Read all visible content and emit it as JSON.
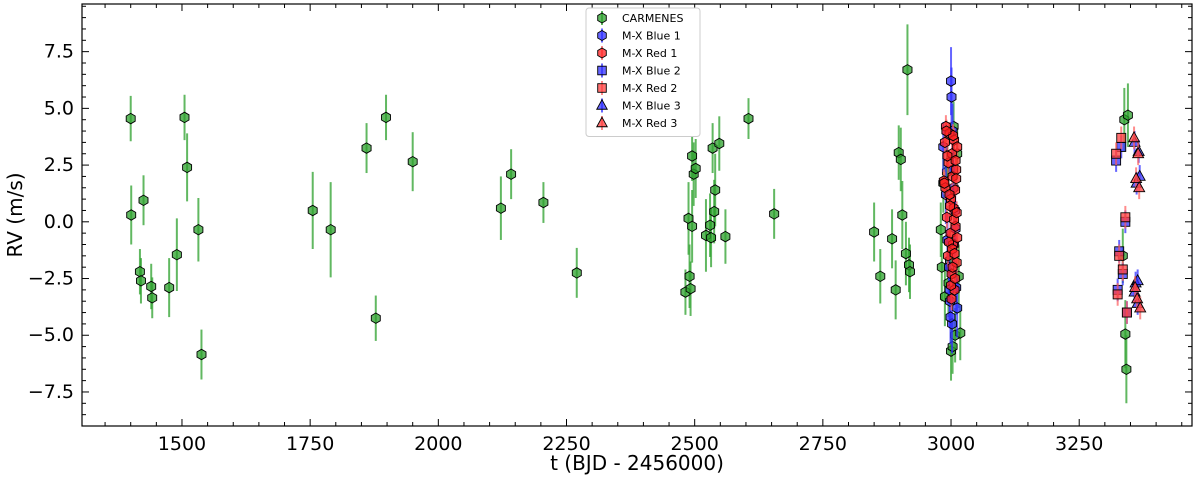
{
  "chart_data": {
    "type": "scatter",
    "xlabel": "t (BJD - 2456000)",
    "ylabel": "RV (m/s)",
    "xlim": [
      1305,
      3470
    ],
    "ylim": [
      -9.0,
      9.6
    ],
    "xticks": [
      1500,
      1750,
      2000,
      2250,
      2500,
      2750,
      3000,
      3250
    ],
    "yticks": [
      -7.5,
      -5.0,
      -2.5,
      0.0,
      2.5,
      5.0,
      7.5
    ],
    "xtick_labels": [
      "1500",
      "1750",
      "2000",
      "2250",
      "2500",
      "2750",
      "3000",
      "3250"
    ],
    "ytick_labels": [
      "−7.5",
      "−5.0",
      "−2.5",
      "0.0",
      "2.5",
      "5.0",
      "7.5"
    ],
    "grid": false,
    "legend_position": "top-center",
    "series": [
      {
        "name": "CARMENES",
        "marker": "hexagon",
        "color": "#2ca02c",
        "error_color": "#2ca02c",
        "points": [
          [
            1400,
            4.55,
            1.0
          ],
          [
            1401,
            0.3,
            1.3
          ],
          [
            1418,
            -2.2,
            1.0
          ],
          [
            1420,
            -2.6,
            1.0
          ],
          [
            1425,
            0.95,
            1.1
          ],
          [
            1440,
            -2.85,
            1.0
          ],
          [
            1442,
            -3.35,
            0.9
          ],
          [
            1475,
            -2.9,
            1.3
          ],
          [
            1490,
            -1.45,
            1.6
          ],
          [
            1505,
            4.6,
            1.0
          ],
          [
            1510,
            2.4,
            1.5
          ],
          [
            1532,
            -0.35,
            1.4
          ],
          [
            1538,
            -5.85,
            1.1
          ],
          [
            1755,
            0.5,
            1.7
          ],
          [
            1790,
            -0.35,
            2.1
          ],
          [
            1860,
            3.25,
            1.1
          ],
          [
            1878,
            -4.25,
            1.0
          ],
          [
            1898,
            4.6,
            1.0
          ],
          [
            1950,
            2.65,
            1.3
          ],
          [
            2122,
            0.6,
            1.4
          ],
          [
            2142,
            2.1,
            1.1
          ],
          [
            2205,
            0.85,
            0.9
          ],
          [
            2270,
            -2.25,
            1.1
          ],
          [
            2482,
            -3.1,
            1.0
          ],
          [
            2488,
            0.15,
            1.6
          ],
          [
            2490,
            -2.4,
            1.4
          ],
          [
            2492,
            -2.95,
            1.2
          ],
          [
            2495,
            2.9,
            1.1
          ],
          [
            2495,
            -0.2,
            1.6
          ],
          [
            2498,
            2.1,
            1.4
          ],
          [
            2502,
            2.35,
            1.3
          ],
          [
            2522,
            -0.6,
            1.6
          ],
          [
            2530,
            -0.15,
            1.4
          ],
          [
            2532,
            -0.7,
            1.3
          ],
          [
            2535,
            3.25,
            1.1
          ],
          [
            2538,
            0.45,
            1.4
          ],
          [
            2540,
            1.4,
            1.6
          ],
          [
            2548,
            3.45,
            1.2
          ],
          [
            2560,
            -0.65,
            1.2
          ],
          [
            2605,
            4.55,
            0.9
          ],
          [
            2655,
            0.35,
            1.1
          ],
          [
            2850,
            -0.45,
            1.3
          ],
          [
            2862,
            -2.4,
            1.2
          ],
          [
            2885,
            -0.75,
            1.3
          ],
          [
            2892,
            -3.0,
            1.3
          ],
          [
            2898,
            3.05,
            1.2
          ],
          [
            2902,
            2.75,
            1.4
          ],
          [
            2905,
            0.3,
            1.5
          ],
          [
            2912,
            -1.4,
            1.4
          ],
          [
            2915,
            6.7,
            2.0
          ],
          [
            2918,
            -1.9,
            1.2
          ],
          [
            2920,
            -2.2,
            1.2
          ],
          [
            2980,
            -0.35,
            1.2
          ],
          [
            2982,
            -2.0,
            1.5
          ],
          [
            2985,
            1.7,
            1.3
          ],
          [
            2988,
            -3.3,
            1.3
          ],
          [
            2992,
            2.2,
            1.2
          ],
          [
            2995,
            -2.7,
            1.5
          ],
          [
            2998,
            -1.7,
            1.4
          ],
          [
            3000,
            -5.7,
            1.3
          ],
          [
            3003,
            -5.5,
            1.2
          ],
          [
            3005,
            4.2,
            1.1
          ],
          [
            3008,
            -5.0,
            1.2
          ],
          [
            3012,
            3.0,
            1.1
          ],
          [
            3015,
            -2.4,
            1.4
          ],
          [
            3018,
            -4.9,
            1.2
          ],
          [
            3335,
            -1.5,
            1.2
          ],
          [
            3338,
            4.5,
            1.4
          ],
          [
            3340,
            -4.95,
            1.5
          ],
          [
            3342,
            -6.5,
            1.5
          ],
          [
            3345,
            4.7,
            1.4
          ]
        ]
      },
      {
        "name": "M-X Blue 1",
        "marker": "hexagon",
        "color": "#3333ff",
        "error_color": "#3333ff",
        "points": [
          [
            2985,
            3.3,
            1.1
          ],
          [
            2990,
            1.2,
            1.3
          ],
          [
            2993,
            -0.8,
            1.2
          ],
          [
            2996,
            -2.0,
            1.3
          ],
          [
            2998,
            -3.5,
            1.2
          ],
          [
            3000,
            6.2,
            1.5
          ],
          [
            3002,
            -4.5,
            1.3
          ],
          [
            3004,
            2.3,
            1.2
          ],
          [
            3006,
            -1.0,
            1.4
          ],
          [
            3008,
            0.5,
            1.1
          ],
          [
            3010,
            -2.9,
            1.2
          ],
          [
            3012,
            -3.8,
            1.3
          ],
          [
            3001,
            5.5,
            1.3
          ],
          [
            3003,
            4.0,
            1.2
          ],
          [
            2997,
            -3.0,
            1.3
          ],
          [
            2999,
            -4.2,
            1.2
          ],
          [
            3005,
            1.5,
            1.1
          ],
          [
            3009,
            -0.3,
            1.2
          ]
        ]
      },
      {
        "name": "M-X Red 1",
        "marker": "hexagon",
        "color": "#ff2020",
        "error_color": "#ff6666",
        "points": [
          [
            2986,
            1.8,
            0.5
          ],
          [
            2988,
            3.5,
            0.5
          ],
          [
            2990,
            4.2,
            0.5
          ],
          [
            2992,
            0.2,
            0.5
          ],
          [
            2994,
            -1.5,
            0.5
          ],
          [
            2995,
            2.6,
            0.5
          ],
          [
            2997,
            3.9,
            0.5
          ],
          [
            2999,
            -0.5,
            0.5
          ],
          [
            3000,
            1.0,
            0.5
          ],
          [
            3001,
            -2.3,
            0.5
          ],
          [
            3002,
            3.0,
            0.5
          ],
          [
            3003,
            2.0,
            0.5
          ],
          [
            3004,
            -1.0,
            0.5
          ],
          [
            3005,
            0.6,
            0.5
          ],
          [
            3006,
            3.6,
            0.5
          ],
          [
            3007,
            -3.0,
            0.5
          ],
          [
            3008,
            1.4,
            0.5
          ],
          [
            3009,
            -0.2,
            0.5
          ],
          [
            3010,
            2.3,
            0.5
          ],
          [
            3011,
            -1.8,
            0.5
          ],
          [
            3012,
            3.3,
            0.5
          ],
          [
            2989,
            1.5,
            0.5
          ],
          [
            2993,
            2.9,
            0.5
          ],
          [
            2996,
            -0.9,
            0.5
          ],
          [
            2998,
            0.7,
            0.5
          ],
          [
            3000,
            -2.8,
            0.5
          ],
          [
            3002,
            -1.2,
            0.5
          ],
          [
            3004,
            3.8,
            0.5
          ],
          [
            3006,
            0.1,
            0.5
          ],
          [
            3008,
            -2.5,
            0.5
          ],
          [
            3010,
            1.9,
            0.5
          ],
          [
            3012,
            -0.7,
            0.5
          ],
          [
            2991,
            4.0,
            0.5
          ],
          [
            2997,
            1.2,
            0.5
          ],
          [
            3003,
            -2.0,
            0.5
          ],
          [
            3009,
            2.7,
            0.5
          ],
          [
            2987,
            1.7,
            0.5
          ],
          [
            3001,
            -3.4,
            0.5
          ],
          [
            3007,
            -1.4,
            0.5
          ],
          [
            3011,
            0.4,
            0.5
          ]
        ]
      },
      {
        "name": "M-X Blue 2",
        "marker": "square",
        "color": "#3333ff",
        "error_color": "#3333ff",
        "points": [
          [
            3322,
            2.7,
            0.5
          ],
          [
            3325,
            -3.0,
            0.5
          ],
          [
            3328,
            -1.3,
            0.5
          ],
          [
            3332,
            3.3,
            0.5
          ],
          [
            3335,
            -2.3,
            0.5
          ],
          [
            3340,
            0.0,
            0.5
          ],
          [
            3343,
            -4.0,
            0.5
          ]
        ]
      },
      {
        "name": "M-X Red 2",
        "marker": "square",
        "color": "#ff4040",
        "error_color": "#ff6666",
        "points": [
          [
            3322,
            3.0,
            0.5
          ],
          [
            3325,
            -3.2,
            0.5
          ],
          [
            3328,
            -1.5,
            0.5
          ],
          [
            3332,
            3.7,
            0.5
          ],
          [
            3335,
            -2.1,
            0.5
          ],
          [
            3340,
            0.2,
            0.5
          ],
          [
            3343,
            -4.0,
            0.5
          ]
        ]
      },
      {
        "name": "M-X Blue 3",
        "marker": "triangle",
        "color": "#3333ff",
        "error_color": "#3333ff",
        "points": [
          [
            3358,
            3.5,
            0.5
          ],
          [
            3360,
            -2.7,
            0.5
          ],
          [
            3362,
            1.7,
            0.5
          ],
          [
            3364,
            -3.6,
            0.5
          ],
          [
            3366,
            3.1,
            0.5
          ],
          [
            3368,
            2.0,
            0.5
          ],
          [
            3358,
            -3.1,
            0.5
          ],
          [
            3364,
            -2.6,
            0.5
          ]
        ]
      },
      {
        "name": "M-X Red 3",
        "marker": "triangle",
        "color": "#ff4040",
        "error_color": "#ff6666",
        "points": [
          [
            3357,
            3.7,
            0.5
          ],
          [
            3359,
            -2.9,
            0.5
          ],
          [
            3361,
            1.9,
            0.5
          ],
          [
            3363,
            -3.4,
            0.5
          ],
          [
            3365,
            3.0,
            0.5
          ],
          [
            3367,
            1.5,
            0.5
          ],
          [
            3369,
            -3.8,
            0.5
          ]
        ]
      }
    ]
  }
}
